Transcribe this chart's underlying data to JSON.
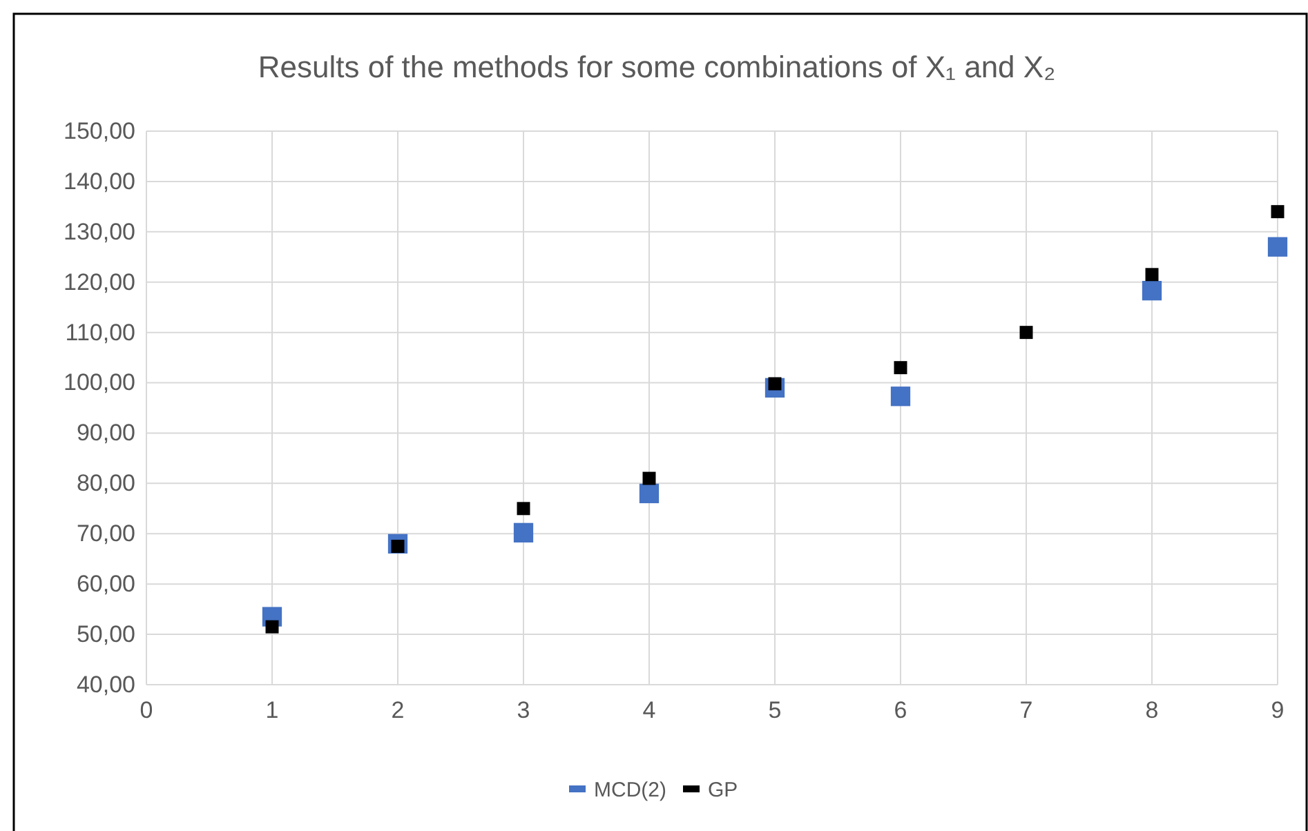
{
  "chart_data": {
    "type": "scatter",
    "title": "Results of the methods for some combinations of X₁ and X₂",
    "series": [
      {
        "name": "MCD(2)",
        "color": "#4472c4",
        "x": [
          1,
          2,
          3,
          4,
          5,
          6,
          7,
          8,
          9
        ],
        "values": [
          53.5,
          68,
          70.2,
          78,
          99,
          97.3,
          null,
          118.3,
          127
        ]
      },
      {
        "name": "GP",
        "color": "#000000",
        "x": [
          1,
          2,
          3,
          4,
          5,
          6,
          7,
          8,
          9
        ],
        "values": [
          51.5,
          67.5,
          75,
          81,
          99.8,
          103,
          110,
          121.5,
          134
        ]
      }
    ],
    "xlim": [
      0,
      9
    ],
    "xticks": [
      0,
      1,
      2,
      3,
      4,
      5,
      6,
      7,
      8,
      9
    ],
    "ylim": [
      40,
      150
    ],
    "yticks": [
      {
        "value": 40,
        "label": "40,00"
      },
      {
        "value": 50,
        "label": "50,00"
      },
      {
        "value": 60,
        "label": "60,00"
      },
      {
        "value": 70,
        "label": "70,00"
      },
      {
        "value": 80,
        "label": "80,00"
      },
      {
        "value": 90,
        "label": "90,00"
      },
      {
        "value": 100,
        "label": "100,00"
      },
      {
        "value": 110,
        "label": "110,00"
      },
      {
        "value": 120,
        "label": "120,00"
      },
      {
        "value": 130,
        "label": "130,00"
      },
      {
        "value": 140,
        "label": "140,00"
      },
      {
        "value": 150,
        "label": "150,00"
      }
    ],
    "grid": true,
    "legend": "bottom",
    "marker": "square"
  }
}
